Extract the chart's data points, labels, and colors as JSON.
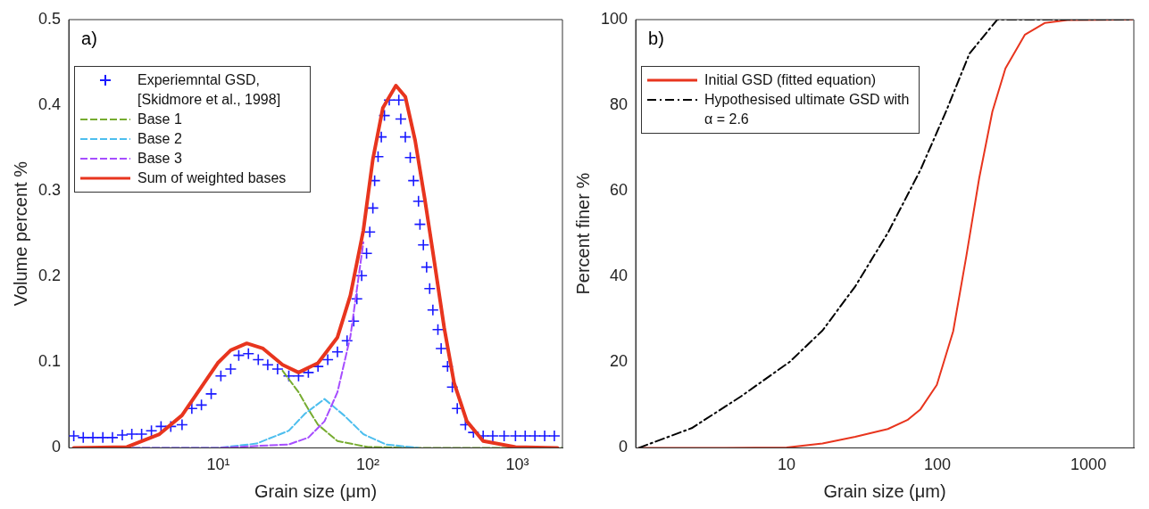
{
  "chart_data": [
    {
      "type": "line",
      "xlabel": "Grain size (μm)",
      "ylabel": "Volume percent %",
      "annotations": [
        "a)"
      ],
      "log": "x",
      "xlim": [
        1,
        2000
      ],
      "xticks": [
        {
          "value": 10,
          "label": "10¹"
        },
        {
          "value": 100,
          "label": "10²"
        },
        {
          "value": 1000,
          "label": "10³"
        }
      ],
      "ylim": [
        0,
        0.5
      ],
      "yticks": [
        0,
        0.1,
        0.2,
        0.3,
        0.4,
        0.5
      ],
      "legend": "top left",
      "series": [
        {
          "name": "Experiemntal GSD, [Skidmore et al., 1998]",
          "type": "scatter",
          "marker": "cross",
          "color": "#1a1aff",
          "x": [
            1.08,
            1.25,
            1.45,
            1.69,
            1.96,
            2.28,
            2.64,
            3.07,
            3.57,
            4.14,
            4.81,
            5.72,
            6.65,
            7.71,
            8.96,
            10.4,
            12.1,
            13.7,
            15.9,
            18.5,
            21.4,
            24.9,
            29.6,
            34.4,
            40,
            46.4,
            53.9,
            62.6,
            72.6,
            80.4,
            84.4,
            90.9,
            98,
            103,
            108,
            111,
            117,
            123,
            129,
            139,
            161,
            166,
            178,
            192,
            202,
            218,
            223,
            235,
            247,
            259,
            272,
            294,
            309,
            341,
            367,
            396,
            449,
            508,
            590,
            684,
            815,
            970,
            1127,
            1309,
            1521,
            1766
          ],
          "values": [
            0.014,
            0.012,
            0.012,
            0.012,
            0.012,
            0.015,
            0.016,
            0.016,
            0.02,
            0.025,
            0.025,
            0.027,
            0.046,
            0.05,
            0.063,
            0.084,
            0.092,
            0.108,
            0.11,
            0.103,
            0.097,
            0.092,
            0.084,
            0.084,
            0.088,
            0.095,
            0.103,
            0.112,
            0.125,
            0.148,
            0.174,
            0.201,
            0.227,
            0.252,
            0.28,
            0.312,
            0.34,
            0.363,
            0.388,
            0.406,
            0.406,
            0.384,
            0.363,
            0.339,
            0.312,
            0.288,
            0.261,
            0.237,
            0.211,
            0.186,
            0.161,
            0.138,
            0.116,
            0.095,
            0.071,
            0.046,
            0.027,
            0.018,
            0.014,
            0.014,
            0.014,
            0.014,
            0.014,
            0.014,
            0.014,
            0.014
          ]
        },
        {
          "name": "Base 1",
          "type": "line",
          "line_style": "dashed",
          "color": "#77ac30",
          "x": [
            26.9,
            34.4,
            40,
            46.4,
            62.6,
            100,
            200,
            2000
          ],
          "values": [
            0.09,
            0.065,
            0.045,
            0.027,
            0.008,
            0.001,
            0,
            0
          ]
        },
        {
          "name": "Base 2",
          "type": "line",
          "line_style": "dashed",
          "color": "#4dbeee",
          "x": [
            1.08,
            10,
            18,
            29.6,
            38,
            51.3,
            69.2,
            93.3,
            132,
            218
          ],
          "values": [
            0,
            0,
            0.005,
            0.02,
            0.04,
            0.057,
            0.038,
            0.016,
            0.004,
            0
          ]
        },
        {
          "name": "Base 3",
          "type": "line",
          "line_style": "dashed",
          "color": "#a64dff",
          "x": [
            1.08,
            10,
            29.6,
            40,
            51.3,
            62.6,
            76.4,
            93.3
          ],
          "values": [
            0,
            0,
            0.004,
            0.012,
            0.031,
            0.065,
            0.13,
            0.24
          ]
        },
        {
          "name": "Sum of weighted bases",
          "type": "line",
          "line_style": "solid",
          "color": "#e8351e",
          "x": [
            1.08,
            2.45,
            4.04,
            5.72,
            7.71,
            9.91,
            12.1,
            15.5,
            19.9,
            26.9,
            34.4,
            46.4,
            62.6,
            76.4,
            93.3,
            108,
            126,
            154,
            178,
            207,
            240,
            279,
            324,
            377,
            459,
            590,
            970,
            1853
          ],
          "values": [
            0,
            0.001,
            0.016,
            0.038,
            0.071,
            0.099,
            0.114,
            0.122,
            0.116,
            0.097,
            0.088,
            0.099,
            0.129,
            0.178,
            0.254,
            0.337,
            0.397,
            0.423,
            0.41,
            0.359,
            0.291,
            0.216,
            0.14,
            0.076,
            0.031,
            0.008,
            0.001,
            0
          ]
        }
      ]
    },
    {
      "type": "line",
      "xlabel": "Grain size (μm)",
      "ylabel": "Percent finer %",
      "annotations": [
        "b)"
      ],
      "log": "x",
      "xlim": [
        1,
        2000
      ],
      "xticks": [
        10,
        100,
        1000
      ],
      "ylim": [
        0,
        100
      ],
      "yticks": [
        0,
        20,
        40,
        60,
        80,
        100
      ],
      "legend": "top left",
      "series": [
        {
          "name": "Initial GSD (fitted equation)",
          "type": "line",
          "line_style": "solid",
          "color": "#e8351e",
          "x": [
            1.05,
            3.9,
            10,
            17.3,
            28.5,
            46.9,
            63.2,
            77.1,
            99,
            127,
            155,
            189,
            231,
            282,
            380,
            513,
            727,
            1950
          ],
          "values": [
            0,
            0,
            0.1,
            1,
            2.6,
            4.4,
            6.5,
            9,
            14.7,
            27.2,
            44.6,
            63,
            78.5,
            88.6,
            96.5,
            99.2,
            99.9,
            100
          ]
        },
        {
          "name": "Hypothesised ultimate GSD with α = 2.6",
          "type": "line",
          "line_style": "dashdot",
          "color": "#000000",
          "x": [
            1.05,
            2.35,
            4.98,
            10.5,
            17.3,
            28.5,
            46.9,
            77.1,
            115,
            163,
            249,
            1950
          ],
          "values": [
            0,
            4.6,
            12,
            20.1,
            27.4,
            37.7,
            50.2,
            64.9,
            78.9,
            92.1,
            100,
            100
          ]
        }
      ]
    }
  ]
}
